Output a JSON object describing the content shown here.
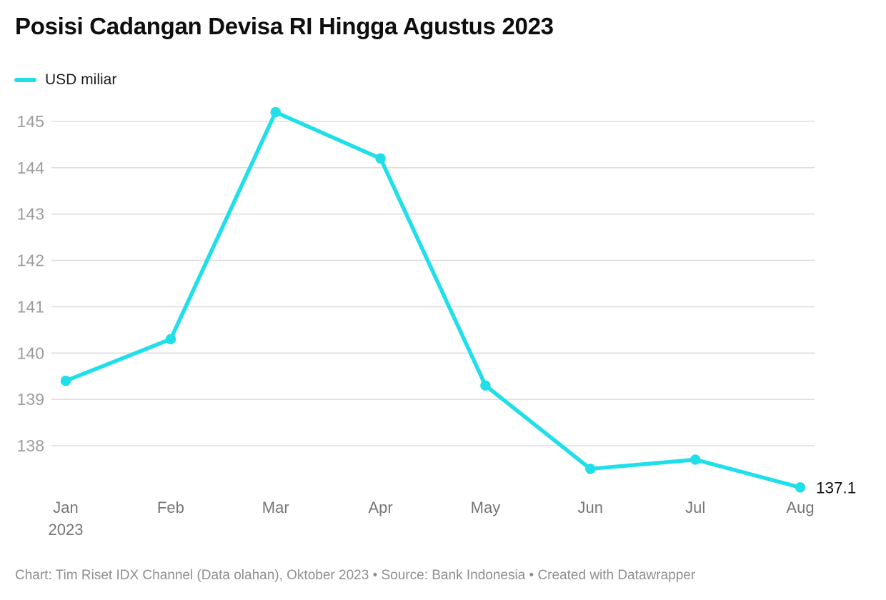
{
  "header": {
    "title": "Posisi Cadangan Devisa RI Hingga Agustus 2023",
    "legend": {
      "label": "USD miliar"
    }
  },
  "chart_data": {
    "type": "line",
    "title": "Posisi Cadangan Devisa RI Hingga Agustus 2023",
    "categories": [
      "Jan",
      "Feb",
      "Mar",
      "Apr",
      "May",
      "Jun",
      "Jul",
      "Aug"
    ],
    "x_secondary_label": {
      "index": 0,
      "text": "2023"
    },
    "series": [
      {
        "name": "USD miliar",
        "values": [
          139.4,
          140.3,
          145.2,
          144.2,
          139.3,
          137.5,
          137.7,
          137.1
        ]
      }
    ],
    "yticks": [
      138,
      139,
      140,
      141,
      142,
      143,
      144,
      145
    ],
    "ylim": [
      136.8,
      145.5
    ],
    "xlabel": "",
    "ylabel": "",
    "grid": true,
    "legend_position": "top-left",
    "last_point_label": "137.1"
  },
  "footer": {
    "attribution": "Chart: Tim Riset IDX Channel (Data olahan), Oktober 2023 • Source: Bank Indonesia • Created with Datawrapper"
  },
  "colors": {
    "line": "#20DFE9",
    "grid": "#dddddd",
    "y_label": "#9d9d9d",
    "x_label": "#767676",
    "title": "#0e0e0e",
    "footer": "#8f8f8f",
    "value_label": "#131313"
  }
}
